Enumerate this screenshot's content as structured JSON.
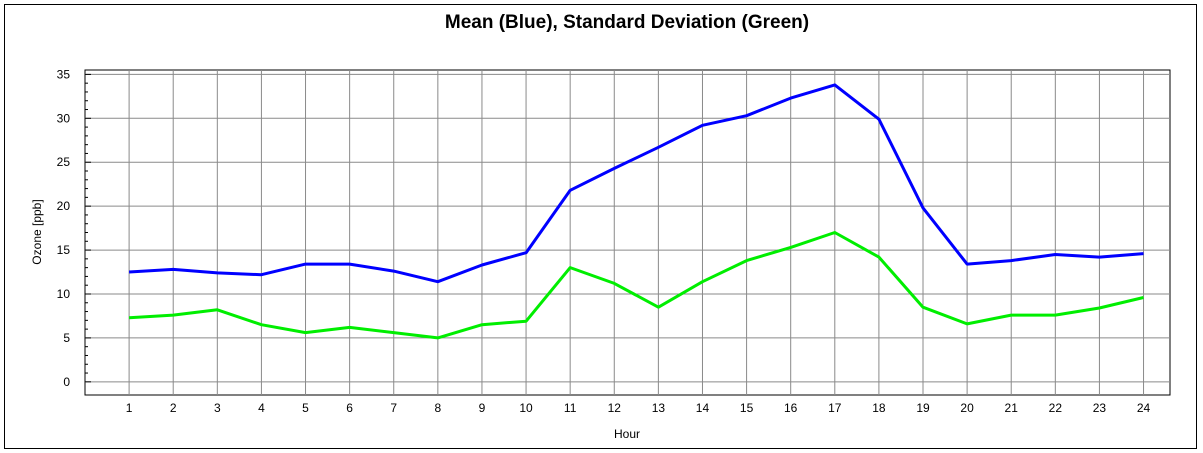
{
  "chart_data": {
    "type": "line",
    "title": "Mean (Blue), Standard Deviation (Green)",
    "xlabel": "Hour",
    "ylabel": "Ozone [ppb]",
    "x": [
      1,
      2,
      3,
      4,
      5,
      6,
      7,
      8,
      9,
      10,
      11,
      12,
      13,
      14,
      15,
      16,
      17,
      18,
      19,
      20,
      21,
      22,
      23,
      24
    ],
    "x_ticks": [
      "1",
      "2",
      "3",
      "4",
      "5",
      "6",
      "7",
      "8",
      "9",
      "10",
      "11",
      "12",
      "13",
      "14",
      "15",
      "16",
      "17",
      "18",
      "19",
      "20",
      "21",
      "22",
      "23",
      "24"
    ],
    "y_ticks": [
      "0",
      "5",
      "10",
      "15",
      "20",
      "25",
      "30",
      "35"
    ],
    "xlim": [
      0,
      24.6
    ],
    "ylim": [
      -1.5,
      35.5
    ],
    "grid": true,
    "series": [
      {
        "color": "#0000ff",
        "values": [
          12.5,
          12.8,
          12.4,
          12.2,
          13.4,
          13.4,
          12.6,
          11.4,
          13.3,
          14.7,
          21.8,
          24.3,
          26.7,
          29.2,
          30.3,
          32.3,
          33.8,
          29.9,
          19.8,
          13.4,
          13.8,
          14.5,
          14.2,
          14.6
        ]
      },
      {
        "color": "#00ee00",
        "values": [
          7.3,
          7.6,
          8.2,
          6.5,
          5.6,
          6.2,
          5.6,
          5.0,
          6.5,
          6.9,
          13.0,
          11.2,
          8.5,
          11.4,
          13.8,
          15.3,
          17.0,
          14.2,
          8.5,
          6.6,
          7.6,
          7.6,
          8.4,
          9.6
        ]
      }
    ]
  }
}
